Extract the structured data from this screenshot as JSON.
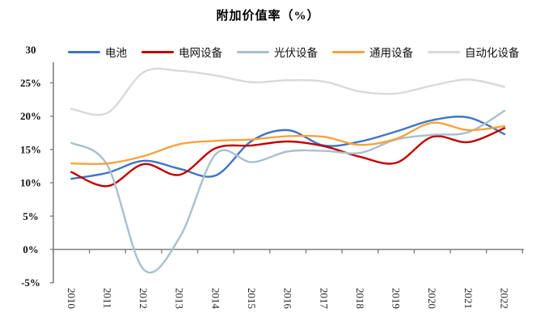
{
  "title": "附加价值率（%）",
  "chart_data": {
    "type": "line",
    "title": "附加价值率（%）",
    "smoothed": true,
    "grid": false,
    "legend_position": "top",
    "unit": "%",
    "categories": [
      "2010",
      "2011",
      "2012",
      "2013",
      "2014",
      "2015",
      "2016",
      "2017",
      "2018",
      "2019",
      "2020",
      "2021",
      "2022"
    ],
    "y_axis": {
      "min": -5,
      "max": 30,
      "tick_step": 5,
      "tick_values": [
        30,
        25,
        20,
        15,
        10,
        5,
        0,
        -5
      ],
      "tick_labels": [
        "30",
        "25%",
        "20%",
        "15%",
        "10%",
        "5%",
        "0%",
        "-5%"
      ]
    },
    "series": [
      {
        "name": "电池",
        "color": "#3E74C6",
        "values": [
          10.6,
          11.5,
          13.3,
          12.1,
          11.1,
          16.3,
          17.9,
          15.6,
          16.2,
          17.7,
          19.4,
          19.8,
          17.3
        ]
      },
      {
        "name": "电网设备",
        "color": "#C00000",
        "values": [
          11.6,
          9.5,
          12.8,
          11.2,
          15.2,
          15.6,
          16.2,
          15.5,
          13.9,
          13.0,
          16.9,
          16.1,
          18.2
        ]
      },
      {
        "name": "光伏设备",
        "color": "#A9C0CE",
        "values": [
          16.0,
          12.6,
          -3.0,
          1.8,
          14.3,
          13.1,
          14.7,
          14.8,
          14.5,
          16.5,
          17.2,
          17.6,
          20.8
        ]
      },
      {
        "name": "通用设备",
        "color": "#F9A23C",
        "values": [
          12.9,
          12.9,
          14.0,
          15.8,
          16.3,
          16.5,
          17.0,
          16.9,
          15.7,
          16.6,
          19.0,
          17.9,
          18.5
        ]
      },
      {
        "name": "自动化设备",
        "color": "#D9D9D9",
        "values": [
          21.1,
          20.5,
          26.6,
          26.8,
          26.1,
          25.1,
          25.4,
          25.2,
          23.7,
          23.4,
          24.6,
          25.5,
          24.4
        ]
      }
    ],
    "axis_color": "#808080"
  }
}
